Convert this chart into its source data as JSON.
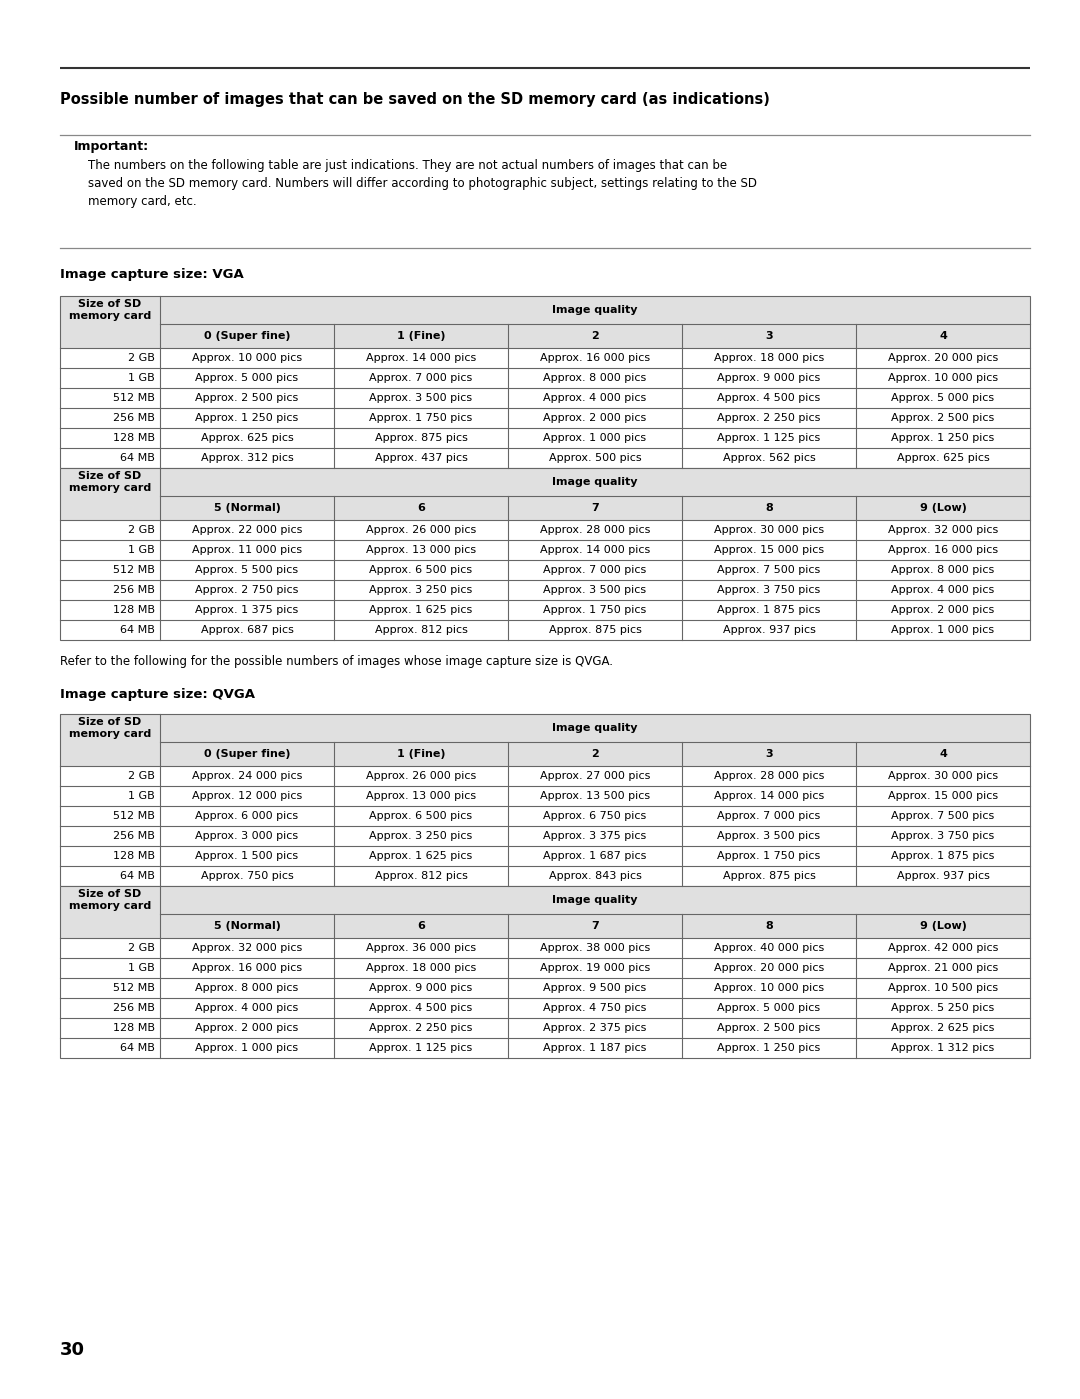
{
  "page_number": "30",
  "main_title": "Possible number of images that can be saved on the SD memory card (as indications)",
  "important_label": "Important:",
  "important_text_line1": "The numbers on the following table are just indications. They are not actual numbers of images that can be",
  "important_text_line2": "saved on the SD memory card. Numbers will differ according to photographic subject, settings relating to the SD",
  "important_text_line3": "memory card, etc.",
  "vga_section_title": "Image capture size: VGA",
  "qvga_section_title": "Image capture size: QVGA",
  "refer_text": "Refer to the following for the possible numbers of images whose image capture size is QVGA.",
  "col_header1a": "Size of SD",
  "col_header1b": "memory card",
  "col_header2": "Image quality",
  "vga_table1_cols": [
    "0 (Super fine)",
    "1 (Fine)",
    "2",
    "3",
    "4"
  ],
  "vga_table2_cols": [
    "5 (Normal)",
    "6",
    "7",
    "8",
    "9 (Low)"
  ],
  "sd_sizes": [
    "2 GB",
    "1 GB",
    "512 MB",
    "256 MB",
    "128 MB",
    "64 MB"
  ],
  "vga_data1": [
    [
      "Approx. 10 000 pics",
      "Approx. 14 000 pics",
      "Approx. 16 000 pics",
      "Approx. 18 000 pics",
      "Approx. 20 000 pics"
    ],
    [
      "Approx. 5 000 pics",
      "Approx. 7 000 pics",
      "Approx. 8 000 pics",
      "Approx. 9 000 pics",
      "Approx. 10 000 pics"
    ],
    [
      "Approx. 2 500 pics",
      "Approx. 3 500 pics",
      "Approx. 4 000 pics",
      "Approx. 4 500 pics",
      "Approx. 5 000 pics"
    ],
    [
      "Approx. 1 250 pics",
      "Approx. 1 750 pics",
      "Approx. 2 000 pics",
      "Approx. 2 250 pics",
      "Approx. 2 500 pics"
    ],
    [
      "Approx. 625 pics",
      "Approx. 875 pics",
      "Approx. 1 000 pics",
      "Approx. 1 125 pics",
      "Approx. 1 250 pics"
    ],
    [
      "Approx. 312 pics",
      "Approx. 437 pics",
      "Approx. 500 pics",
      "Approx. 562 pics",
      "Approx. 625 pics"
    ]
  ],
  "vga_data2": [
    [
      "Approx. 22 000 pics",
      "Approx. 26 000 pics",
      "Approx. 28 000 pics",
      "Approx. 30 000 pics",
      "Approx. 32 000 pics"
    ],
    [
      "Approx. 11 000 pics",
      "Approx. 13 000 pics",
      "Approx. 14 000 pics",
      "Approx. 15 000 pics",
      "Approx. 16 000 pics"
    ],
    [
      "Approx. 5 500 pics",
      "Approx. 6 500 pics",
      "Approx. 7 000 pics",
      "Approx. 7 500 pics",
      "Approx. 8 000 pics"
    ],
    [
      "Approx. 2 750 pics",
      "Approx. 3 250 pics",
      "Approx. 3 500 pics",
      "Approx. 3 750 pics",
      "Approx. 4 000 pics"
    ],
    [
      "Approx. 1 375 pics",
      "Approx. 1 625 pics",
      "Approx. 1 750 pics",
      "Approx. 1 875 pics",
      "Approx. 2 000 pics"
    ],
    [
      "Approx. 687 pics",
      "Approx. 812 pics",
      "Approx. 875 pics",
      "Approx. 937 pics",
      "Approx. 1 000 pics"
    ]
  ],
  "qvga_data1": [
    [
      "Approx. 24 000 pics",
      "Approx. 26 000 pics",
      "Approx. 27 000 pics",
      "Approx. 28 000 pics",
      "Approx. 30 000 pics"
    ],
    [
      "Approx. 12 000 pics",
      "Approx. 13 000 pics",
      "Approx. 13 500 pics",
      "Approx. 14 000 pics",
      "Approx. 15 000 pics"
    ],
    [
      "Approx. 6 000 pics",
      "Approx. 6 500 pics",
      "Approx. 6 750 pics",
      "Approx. 7 000 pics",
      "Approx. 7 500 pics"
    ],
    [
      "Approx. 3 000 pics",
      "Approx. 3 250 pics",
      "Approx. 3 375 pics",
      "Approx. 3 500 pics",
      "Approx. 3 750 pics"
    ],
    [
      "Approx. 1 500 pics",
      "Approx. 1 625 pics",
      "Approx. 1 687 pics",
      "Approx. 1 750 pics",
      "Approx. 1 875 pics"
    ],
    [
      "Approx. 750 pics",
      "Approx. 812 pics",
      "Approx. 843 pics",
      "Approx. 875 pics",
      "Approx. 937 pics"
    ]
  ],
  "qvga_data2": [
    [
      "Approx. 32 000 pics",
      "Approx. 36 000 pics",
      "Approx. 38 000 pics",
      "Approx. 40 000 pics",
      "Approx. 42 000 pics"
    ],
    [
      "Approx. 16 000 pics",
      "Approx. 18 000 pics",
      "Approx. 19 000 pics",
      "Approx. 20 000 pics",
      "Approx. 21 000 pics"
    ],
    [
      "Approx. 8 000 pics",
      "Approx. 9 000 pics",
      "Approx. 9 500 pics",
      "Approx. 10 000 pics",
      "Approx. 10 500 pics"
    ],
    [
      "Approx. 4 000 pics",
      "Approx. 4 500 pics",
      "Approx. 4 750 pics",
      "Approx. 5 000 pics",
      "Approx. 5 250 pics"
    ],
    [
      "Approx. 2 000 pics",
      "Approx. 2 250 pics",
      "Approx. 2 375 pics",
      "Approx. 2 500 pics",
      "Approx. 2 625 pics"
    ],
    [
      "Approx. 1 000 pics",
      "Approx. 1 125 pics",
      "Approx. 1 187 pics",
      "Approx. 1 250 pics",
      "Approx. 1 312 pics"
    ]
  ],
  "bg_color": "#ffffff",
  "text_color": "#000000",
  "table_header_bg": "#e0e0e0",
  "table_border_color": "#666666",
  "top_line_color": "#333333",
  "imp_border_color": "#888888"
}
